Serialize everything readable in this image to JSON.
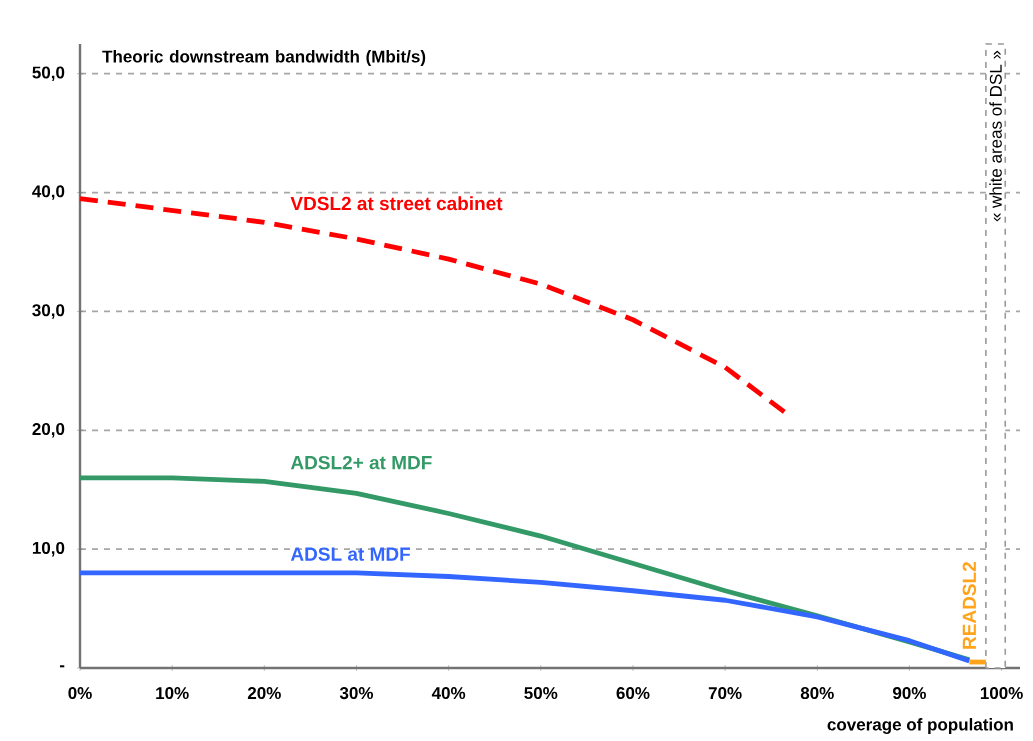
{
  "chart_data": {
    "type": "line",
    "ylabel": "Theoric downstream bandwidth (Mbit/s)",
    "xlabel": "coverage of population",
    "series": [
      {
        "name": "VDSL2 at street cabinet",
        "color": "#ff0000",
        "line_style": "dashed",
        "x": [
          0,
          10,
          20,
          30,
          40,
          50,
          60,
          70,
          76.5
        ],
        "values": [
          39.5,
          38.5,
          37.5,
          36.1,
          34.4,
          32.3,
          29.3,
          25.3,
          21.5
        ]
      },
      {
        "name": "ADSL2+ at MDF",
        "color": "#339966",
        "x": [
          0,
          10,
          20,
          30,
          40,
          50,
          60,
          70,
          80,
          90,
          96.5
        ],
        "values": [
          16,
          16,
          15.7,
          14.7,
          13,
          11.1,
          8.8,
          6.5,
          4.4,
          2.2,
          0.7
        ]
      },
      {
        "name": "ADSL at MDF",
        "color": "#3366ff",
        "x": [
          0,
          10,
          20,
          30,
          40,
          50,
          60,
          70,
          80,
          90,
          96.5
        ],
        "values": [
          8,
          8,
          8,
          8,
          7.7,
          7.2,
          6.5,
          5.7,
          4.3,
          2.3,
          0.6
        ]
      },
      {
        "name": "READSL2",
        "color": "#ffa31a",
        "x": [
          96.5,
          98.3
        ],
        "values": [
          0.5,
          0.5
        ]
      }
    ],
    "xlim": [
      0,
      102
    ],
    "ylim": [
      0,
      52.5
    ],
    "xticks": [
      {
        "value": 0,
        "label": "0%"
      },
      {
        "value": 10,
        "label": "10%"
      },
      {
        "value": 20,
        "label": "20%"
      },
      {
        "value": 30,
        "label": "30%"
      },
      {
        "value": 40,
        "label": "40%"
      },
      {
        "value": 50,
        "label": "50%"
      },
      {
        "value": 60,
        "label": "60%"
      },
      {
        "value": 70,
        "label": "70%"
      },
      {
        "value": 80,
        "label": "80%"
      },
      {
        "value": 90,
        "label": "90%"
      },
      {
        "value": 100,
        "label": "100%"
      }
    ],
    "yticks": [
      {
        "value": 0,
        "label": "-"
      },
      {
        "value": 10,
        "label": "10,0"
      },
      {
        "value": 20,
        "label": "20,0"
      },
      {
        "value": 30,
        "label": "30,0"
      },
      {
        "value": 40,
        "label": "40,0"
      },
      {
        "value": 50,
        "label": "50,0"
      }
    ],
    "bands": [
      {
        "axis": "x",
        "from": 98.3,
        "to": 100.4,
        "label": "« white areas of DSL »",
        "color": "#999999"
      }
    ],
    "grid": "y",
    "legend": false
  }
}
